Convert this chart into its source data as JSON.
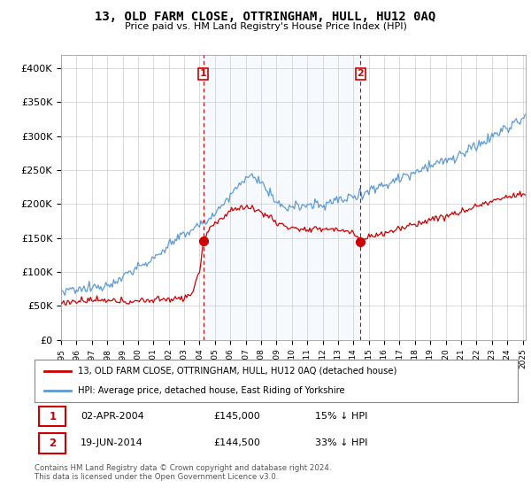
{
  "title": "13, OLD FARM CLOSE, OTTRINGHAM, HULL, HU12 0AQ",
  "subtitle": "Price paid vs. HM Land Registry's House Price Index (HPI)",
  "ylabel_ticks": [
    "£0",
    "£50K",
    "£100K",
    "£150K",
    "£200K",
    "£250K",
    "£300K",
    "£350K",
    "£400K"
  ],
  "ytick_vals": [
    0,
    50000,
    100000,
    150000,
    200000,
    250000,
    300000,
    350000,
    400000
  ],
  "ylim": [
    0,
    420000
  ],
  "xlim_start": 1995.0,
  "xlim_end": 2025.2,
  "sale1_x": 2004.25,
  "sale1_y": 145000,
  "sale2_x": 2014.46,
  "sale2_y": 144500,
  "legend_line1": "13, OLD FARM CLOSE, OTTRINGHAM, HULL, HU12 0AQ (detached house)",
  "legend_line2": "HPI: Average price, detached house, East Riding of Yorkshire",
  "table_row1_date": "02-APR-2004",
  "table_row1_price": "£145,000",
  "table_row1_hpi": "15% ↓ HPI",
  "table_row2_date": "19-JUN-2014",
  "table_row2_price": "£144,500",
  "table_row2_hpi": "33% ↓ HPI",
  "footer": "Contains HM Land Registry data © Crown copyright and database right 2024.\nThis data is licensed under the Open Government Licence v3.0.",
  "red_color": "#cc0000",
  "blue_color": "#5b9bd5",
  "shade_color": "#ddeeff",
  "bg_color": "#ffffff",
  "grid_color": "#cccccc"
}
